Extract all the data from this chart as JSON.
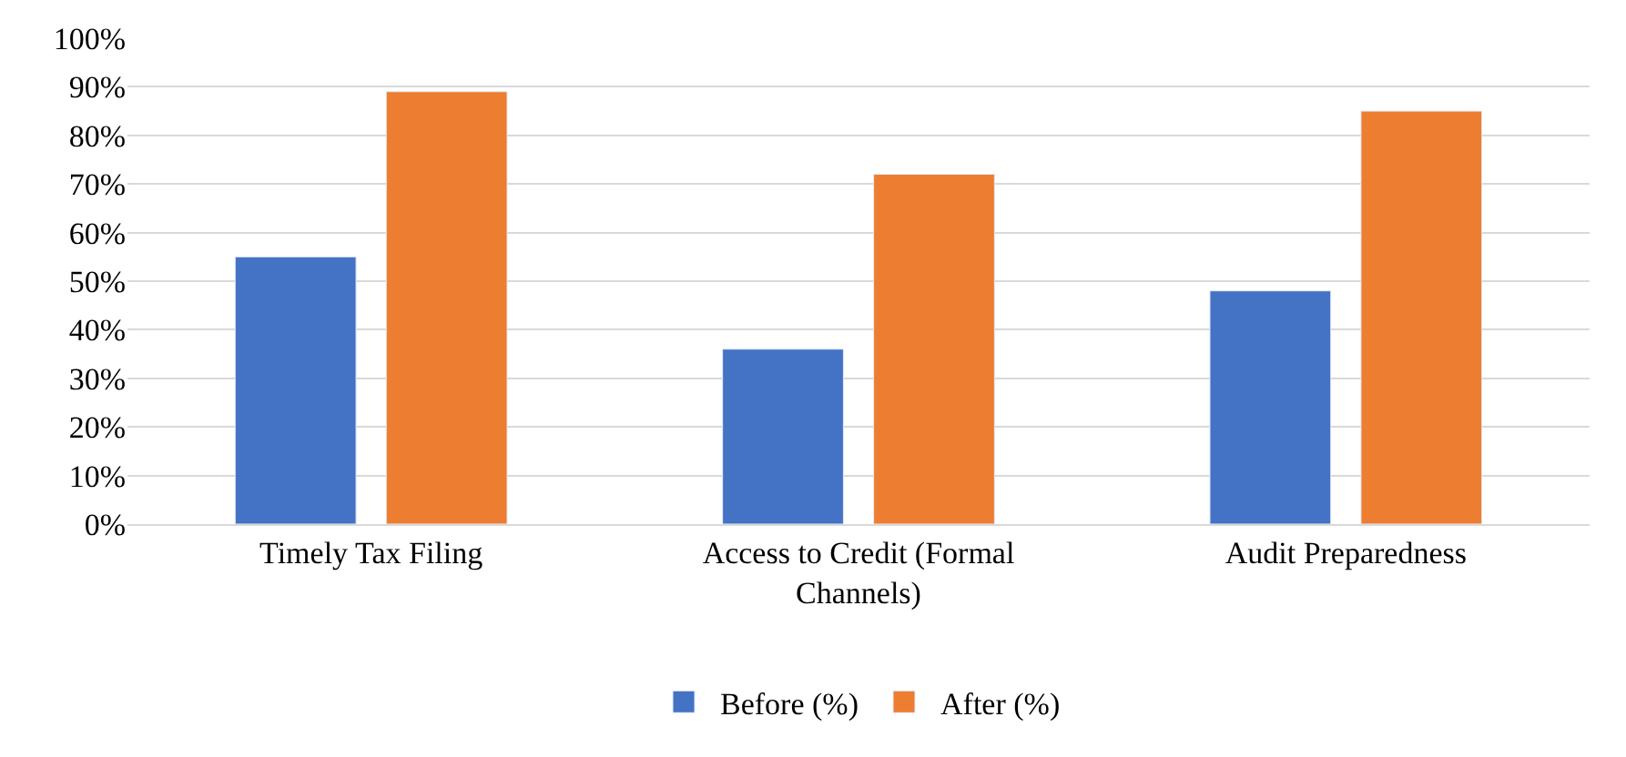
{
  "chart_data": {
    "type": "bar",
    "categories": [
      "Timely Tax Filing",
      "Access to Credit (Formal Channels)",
      "Audit Preparedness"
    ],
    "series": [
      {
        "name": "Before (%)",
        "color": "#4472c4",
        "values": [
          55,
          36,
          48
        ]
      },
      {
        "name": "After (%)",
        "color": "#ed7d31",
        "values": [
          89,
          72,
          85
        ]
      }
    ],
    "ylim": [
      0,
      100
    ],
    "yticks": [
      {
        "value": 0,
        "label": "0%"
      },
      {
        "value": 10,
        "label": "10%"
      },
      {
        "value": 20,
        "label": "20%"
      },
      {
        "value": 30,
        "label": "30%"
      },
      {
        "value": 40,
        "label": "40%"
      },
      {
        "value": 50,
        "label": "50%"
      },
      {
        "value": 60,
        "label": "60%"
      },
      {
        "value": 70,
        "label": "70%"
      },
      {
        "value": 80,
        "label": "80%"
      },
      {
        "value": 90,
        "label": "90%"
      },
      {
        "value": 100,
        "label": "100%"
      }
    ],
    "grid": "y",
    "legend": "bottom"
  }
}
